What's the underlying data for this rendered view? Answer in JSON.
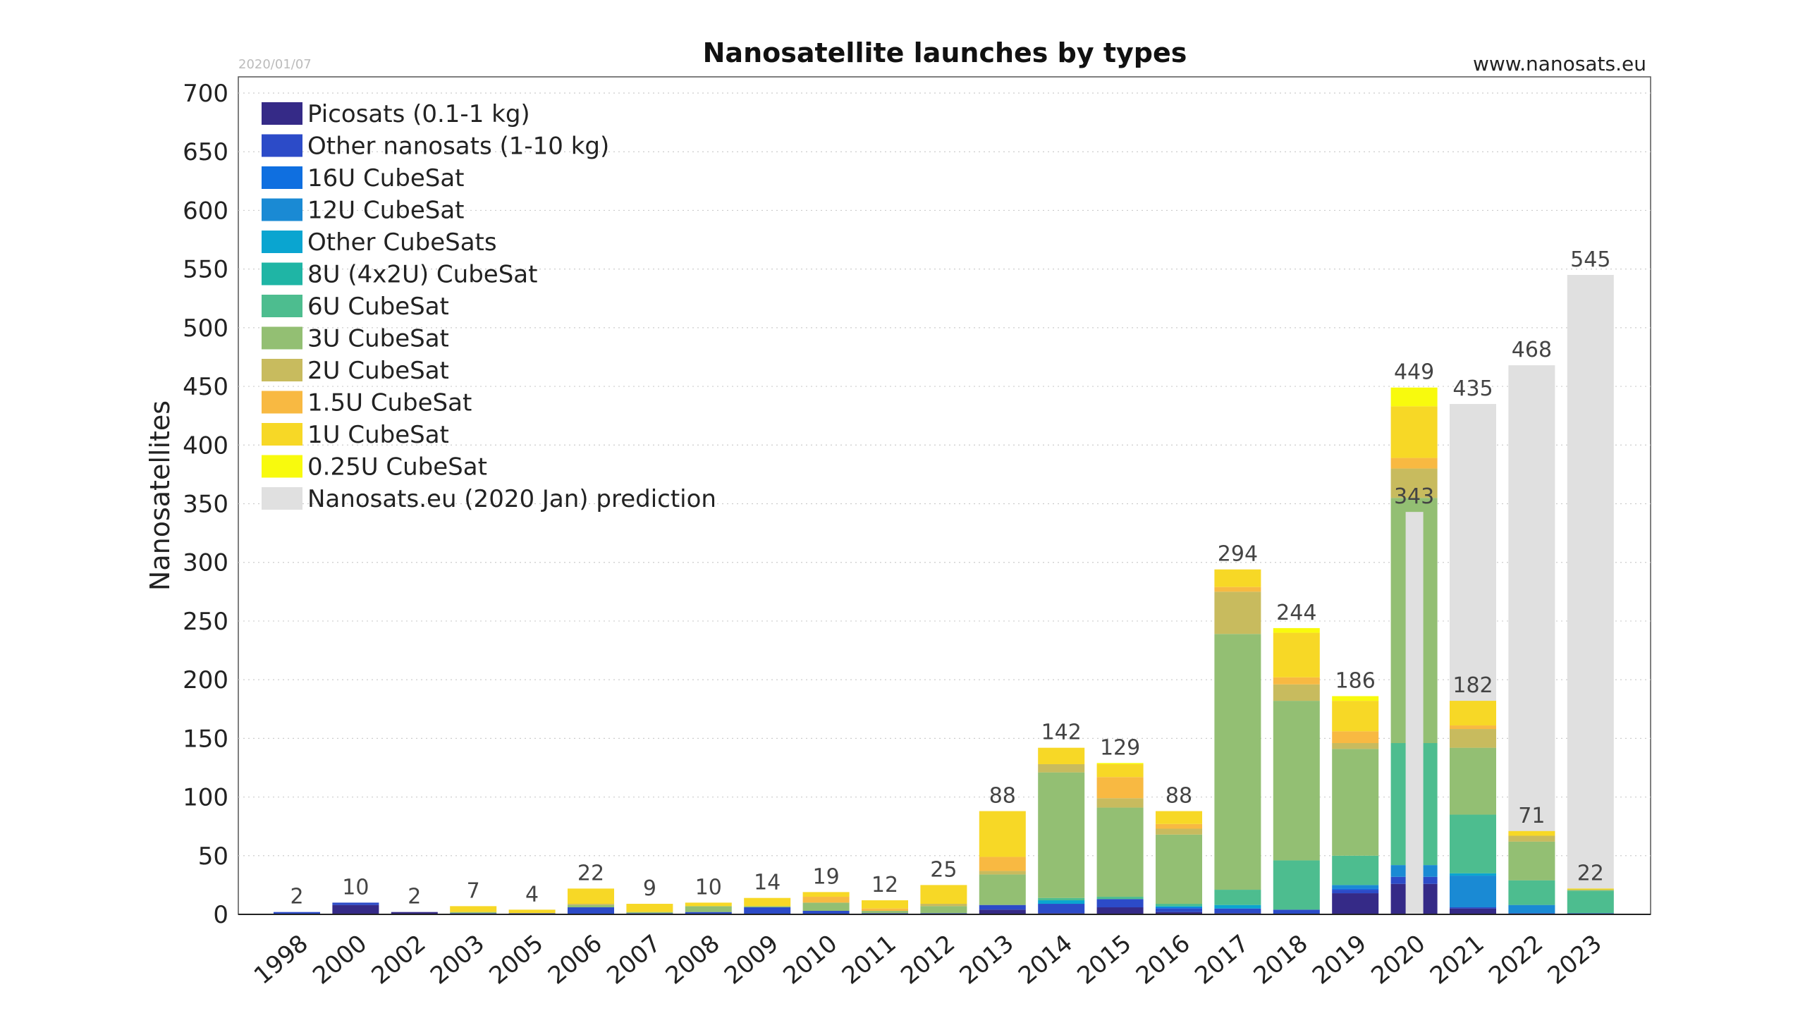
{
  "chart_data": {
    "type": "bar",
    "stacked": true,
    "title": "Nanosatellite launches by types",
    "date_note": "2020/01/07",
    "source": "www.nanosats.eu",
    "ylabel": "Nanosatellites",
    "xlabel": "",
    "ylim": [
      0,
      700
    ],
    "yticks": [
      0,
      50,
      100,
      150,
      200,
      250,
      300,
      350,
      400,
      450,
      500,
      550,
      600,
      650,
      700
    ],
    "grid": "horizontal dotted",
    "legend_placement": "top-left",
    "categories": [
      "1998",
      "2000",
      "2002",
      "2003",
      "2005",
      "2006",
      "2007",
      "2008",
      "2009",
      "2010",
      "2011",
      "2012",
      "2013",
      "2014",
      "2015",
      "2016",
      "2017",
      "2018",
      "2019",
      "2020",
      "2021",
      "2022",
      "2023"
    ],
    "series": [
      {
        "name": "Picosats (0.1-1 kg)",
        "color": "#352a87",
        "values": [
          0,
          8,
          2,
          0,
          0,
          0,
          0,
          0,
          0,
          0,
          0,
          0,
          4,
          1,
          6,
          2,
          1,
          0,
          18,
          26,
          5,
          0,
          0
        ]
      },
      {
        "name": "Other nanosats (1-10 kg)",
        "color": "#2c4bc8",
        "values": [
          2,
          2,
          0,
          1,
          1,
          6,
          1,
          2,
          6,
          3,
          1,
          1,
          4,
          8,
          7,
          3,
          4,
          4,
          3,
          6,
          1,
          1,
          1
        ]
      },
      {
        "name": "16U CubeSat",
        "color": "#0f6fe0",
        "values": [
          0,
          0,
          0,
          0,
          0,
          0,
          0,
          0,
          0,
          0,
          0,
          0,
          0,
          0,
          0,
          1,
          0,
          0,
          1,
          0,
          0,
          0,
          0
        ]
      },
      {
        "name": "12U CubeSat",
        "color": "#1a8ad4",
        "values": [
          0,
          0,
          0,
          0,
          0,
          0,
          0,
          0,
          0,
          0,
          0,
          0,
          0,
          0,
          0,
          0,
          0,
          0,
          3,
          10,
          27,
          7,
          0
        ]
      },
      {
        "name": "Other CubeSats",
        "color": "#0aa5d0",
        "values": [
          0,
          0,
          0,
          0,
          0,
          0,
          0,
          0,
          0,
          0,
          0,
          0,
          0,
          3,
          0,
          1,
          3,
          0,
          0,
          0,
          2,
          0,
          0
        ]
      },
      {
        "name": "8U (4x2U) CubeSat",
        "color": "#1fb5a5",
        "values": [
          0,
          0,
          0,
          0,
          0,
          0,
          0,
          0,
          0,
          0,
          0,
          0,
          0,
          0,
          0,
          0,
          0,
          0,
          0,
          0,
          0,
          0,
          0
        ]
      },
      {
        "name": "6U CubeSat",
        "color": "#4dbd8f",
        "values": [
          0,
          0,
          0,
          0,
          0,
          0,
          0,
          0,
          0,
          0,
          0,
          0,
          0,
          2,
          2,
          2,
          13,
          42,
          25,
          104,
          50,
          21,
          19
        ]
      },
      {
        "name": "3U CubeSat",
        "color": "#93bf73",
        "values": [
          0,
          0,
          0,
          1,
          0,
          2,
          1,
          5,
          1,
          7,
          2,
          6,
          26,
          107,
          76,
          59,
          218,
          136,
          91,
          209,
          57,
          33,
          1
        ]
      },
      {
        "name": "2U CubeSat",
        "color": "#c8bb5e",
        "values": [
          0,
          0,
          0,
          0,
          0,
          1,
          0,
          0,
          0,
          0,
          0,
          2,
          3,
          7,
          8,
          5,
          36,
          14,
          5,
          25,
          16,
          5,
          0
        ]
      },
      {
        "name": "1.5U CubeSat",
        "color": "#f8b942",
        "values": [
          0,
          0,
          0,
          0,
          0,
          0,
          0,
          0,
          0,
          5,
          2,
          0,
          12,
          0,
          18,
          4,
          4,
          6,
          10,
          9,
          3,
          0,
          0
        ]
      },
      {
        "name": "1U CubeSat",
        "color": "#f7d826",
        "values": [
          0,
          0,
          0,
          5,
          3,
          13,
          7,
          3,
          7,
          4,
          7,
          16,
          39,
          14,
          11,
          11,
          15,
          38,
          26,
          44,
          21,
          4,
          1
        ]
      },
      {
        "name": "0.25U CubeSat",
        "color": "#f8fa0d",
        "values": [
          0,
          0,
          0,
          0,
          0,
          0,
          0,
          0,
          0,
          0,
          0,
          0,
          0,
          0,
          1,
          0,
          0,
          4,
          4,
          16,
          0,
          0,
          0
        ]
      }
    ],
    "prediction": {
      "name": "Nanosats.eu (2020 Jan) prediction",
      "color": "#e0e0e0",
      "values": [
        null,
        null,
        null,
        null,
        null,
        null,
        null,
        null,
        null,
        null,
        null,
        null,
        null,
        null,
        null,
        null,
        null,
        null,
        null,
        343,
        435,
        468,
        545
      ]
    },
    "totals": [
      2,
      10,
      2,
      7,
      4,
      22,
      9,
      10,
      14,
      19,
      12,
      25,
      88,
      142,
      129,
      88,
      294,
      244,
      186,
      449,
      182,
      71,
      22
    ]
  }
}
